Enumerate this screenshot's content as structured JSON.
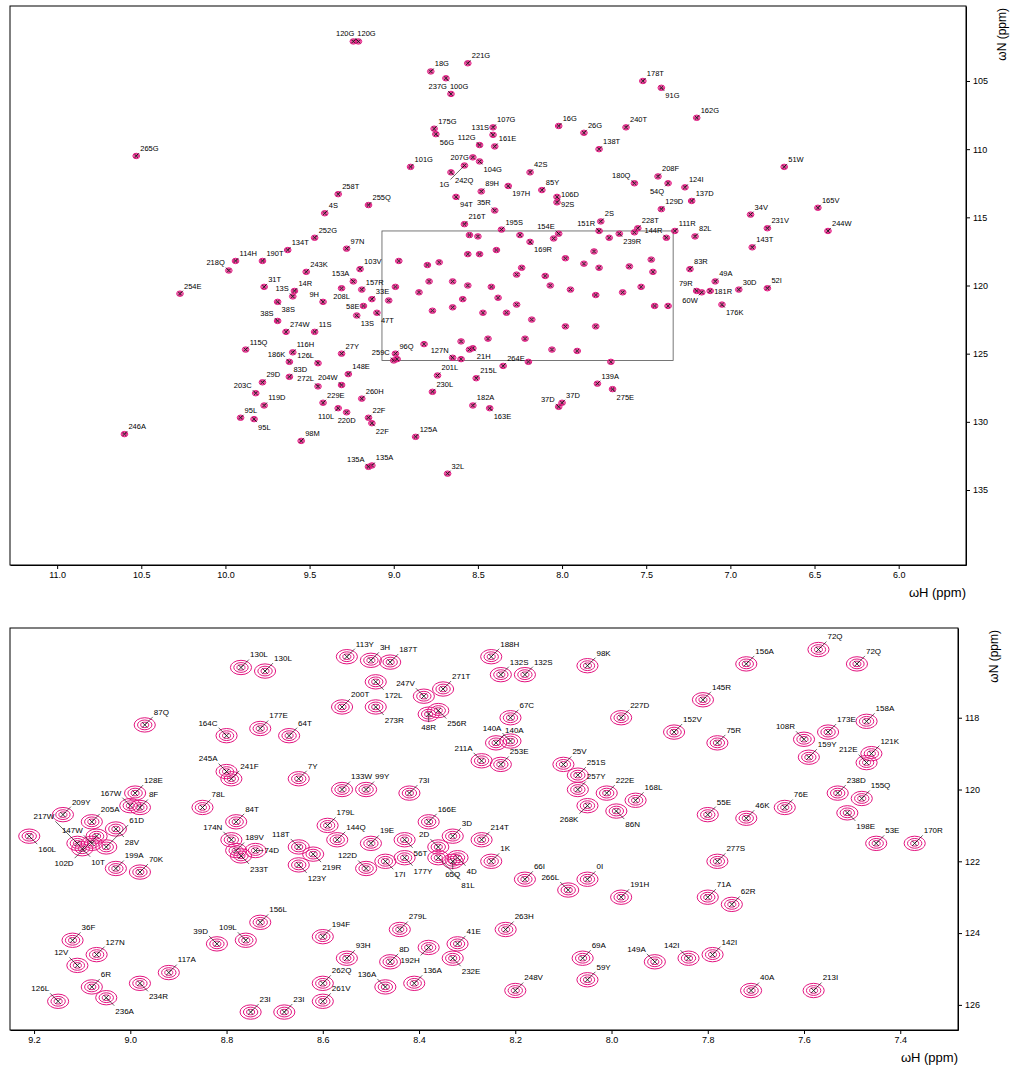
{
  "chart_data": [
    {
      "type": "scatter",
      "x_label": "ωH (ppm)",
      "y_label": "ωN (ppm)",
      "xlim": [
        11.28,
        5.6
      ],
      "ylim": [
        99.5,
        140.5
      ],
      "xticks": [
        {
          "value": 11,
          "label": "11.0"
        },
        10.5,
        {
          "value": 10,
          "label": "10.0"
        },
        9.5,
        {
          "value": 9,
          "label": "9.0"
        },
        8.5,
        {
          "value": 8,
          "label": "8.0"
        },
        7.5,
        {
          "value": 7,
          "label": "7.0"
        },
        6.5,
        {
          "value": 6,
          "label": "6.0"
        }
      ],
      "yticks": [
        105,
        110,
        115,
        120,
        125,
        130,
        135
      ],
      "color": "#e3147f",
      "marker": "x",
      "zoom_region": {
        "x": [
          9.07,
          7.34
        ],
        "y": [
          116.0,
          125.5
        ]
      },
      "series": [
        {
          "labels": [
            "120G",
            "120G",
            "18G",
            "221G",
            "100G",
            "237G",
            "178T",
            "91G",
            "162G",
            "16G",
            "26G",
            "240T",
            "175G",
            "56G",
            "107G",
            "131S",
            "112G",
            "161E",
            "138T",
            "265G",
            "207G",
            "104G",
            "101G",
            "242Q",
            "1G",
            "42S",
            "51W",
            "208F",
            "54Q",
            "180Q",
            "197H",
            "85Y",
            "124I",
            "258T",
            "94T",
            "89H",
            "92S",
            "106D",
            "137D",
            "129D",
            "255Q",
            "4S",
            "34V",
            "165V",
            "35R",
            "2S",
            "216T",
            "244W",
            "231V",
            "151R",
            "195S",
            "228T",
            "239R",
            "154E",
            "169R",
            "144R",
            "111R",
            "82L",
            "143T",
            "252G",
            "134T",
            "97N",
            "190T",
            "114H",
            "218Q",
            "243K",
            "103V",
            "83R",
            "49A",
            "31T",
            "153A",
            "14R",
            "208L",
            "157R",
            "254E",
            "79R",
            "60W",
            "181R",
            "30D",
            "52I",
            "38S",
            "13S",
            "9H",
            "58E",
            "33E",
            "176K",
            "47T",
            "38S",
            "274W",
            "13S",
            "11S",
            "115Q",
            "116H",
            "27Y",
            "96Q",
            "21H",
            "127N",
            "126L",
            "186K",
            "83D",
            "148E",
            "259C",
            "264E",
            "201L",
            "215L",
            "272L",
            "204W",
            "29D",
            "260H",
            "230L",
            "139A",
            "275E",
            "203C",
            "182A",
            "119D",
            "229E",
            "37D",
            "37D",
            "163E",
            "110L",
            "95L",
            "95L",
            "220D",
            "22F",
            "22F",
            "98M",
            "246A",
            "125A",
            "135A",
            "135A",
            "32L"
          ],
          "x": [
            9.24,
            9.21,
            8.78,
            8.56,
            8.69,
            8.66,
            7.52,
            7.41,
            7.2,
            8.02,
            7.87,
            7.62,
            8.76,
            8.75,
            8.41,
            8.41,
            8.49,
            8.4,
            7.78,
            10.53,
            8.53,
            8.49,
            8.9,
            8.66,
            8.58,
            8.19,
            6.68,
            7.43,
            7.37,
            7.57,
            8.32,
            8.12,
            7.27,
            9.33,
            8.63,
            8.48,
            8.03,
            8.03,
            7.23,
            7.41,
            9.15,
            9.41,
            6.88,
            6.48,
            8.4,
            7.77,
            8.58,
            6.42,
            6.78,
            7.78,
            8.36,
            7.55,
            7.66,
            8.02,
            8.19,
            7.38,
            7.33,
            7.21,
            6.87,
            9.47,
            9.63,
            9.28,
            9.78,
            9.94,
            9.98,
            9.52,
            9.2,
            7.24,
            7.09,
            9.77,
            9.24,
            9.59,
            9.31,
            9.19,
            10.27,
            7.2,
            7.17,
            7.12,
            6.95,
            6.78,
            9.69,
            9.6,
            9.42,
            9.18,
            9.13,
            7.05,
            9.1,
            9.69,
            9.64,
            9.22,
            9.47,
            9.88,
            9.6,
            9.31,
            8.99,
            8.53,
            8.65,
            9.45,
            9.62,
            9.62,
            9.27,
            9.0,
            8.35,
            8.74,
            8.51,
            9.45,
            9.31,
            9.78,
            9.19,
            8.77,
            7.79,
            7.7,
            9.82,
            8.53,
            9.77,
            9.42,
            8.0,
            8.02,
            8.43,
            9.33,
            9.91,
            9.83,
            9.28,
            9.15,
            9.13,
            9.55,
            10.6,
            8.87,
            9.13,
            9.15,
            8.68
          ],
          "values": [
            102.1,
            102.1,
            104.3,
            103.7,
            104.8,
            105.95,
            105,
            105.5,
            107.7,
            108.3,
            108.8,
            108.4,
            108.5,
            108.9,
            108.4,
            108.95,
            109.7,
            109.8,
            110,
            110.5,
            110.6,
            110.9,
            111.3,
            111.7,
            111.2,
            111.7,
            111.3,
            112,
            112.5,
            112.5,
            112.7,
            113,
            112.8,
            113.3,
            113.5,
            113.1,
            113.5,
            113.9,
            113.8,
            114.4,
            114.1,
            114.7,
            114.8,
            114.3,
            114.5,
            115.3,
            115.5,
            116,
            115.8,
            116,
            115.9,
            115.8,
            116.2,
            116.2,
            116.8,
            116.5,
            116,
            116.4,
            117.2,
            116.5,
            117.4,
            117.3,
            118.2,
            118.2,
            118.9,
            119,
            118.8,
            118.8,
            119.7,
            120.1,
            119.7,
            120.4,
            120.2,
            120.3,
            120.6,
            120.4,
            120.5,
            120.4,
            120.3,
            120.2,
            121.2,
            120.8,
            121.2,
            121.5,
            121,
            121.4,
            122,
            122.6,
            123.4,
            122.2,
            123.4,
            124.7,
            124.9,
            125,
            125,
            124.6,
            125.3,
            125.7,
            125.6,
            126.7,
            126.5,
            125.5,
            125.9,
            126.6,
            126.8,
            127.4,
            127.3,
            127.1,
            128.3,
            127.8,
            127.2,
            127.6,
            127.9,
            128.8,
            128.8,
            128.6,
            128.6,
            128.9,
            129,
            129,
            129.7,
            129.8,
            129.3,
            129.7,
            130.1,
            131.4,
            130.9,
            131.1,
            133.2,
            133.3,
            133.8
          ]
        },
        {
          "x": [
            8.55,
            8.5,
            8.25,
            8.05,
            7.72,
            7.57,
            8.8,
            8.73,
            8.56,
            8.49,
            8.39,
            8.97,
            7.98,
            7.81,
            7.6,
            7.47,
            8.24,
            7.87,
            8.79,
            8.65,
            8.56,
            8.42,
            8.27,
            8.1,
            7.78,
            7.46,
            8.99,
            8.85,
            9.03,
            8.59,
            8.38,
            8.27,
            8.07,
            7.95,
            7.8,
            7.64,
            7.53,
            7.37,
            7.45,
            8.77,
            8.65,
            8.47,
            8.33,
            8.18,
            7.98,
            7.8,
            8.82,
            8.6,
            8.44,
            8.98,
            8.55,
            8.22,
            7.91,
            7.71,
            8.06,
            8.6,
            8.2
          ],
          "values": [
            116.3,
            116.4,
            116.3,
            116.55,
            116.5,
            116.1,
            118.5,
            118.3,
            117.7,
            117.7,
            117.4,
            118.2,
            118,
            117.5,
            118.6,
            118.1,
            118.7,
            118.4,
            119.7,
            119.7,
            120,
            120.1,
            119.2,
            119.3,
            118.7,
            119,
            120.1,
            120.5,
            121.1,
            121,
            120.9,
            121.4,
            120,
            120.3,
            120.7,
            120.5,
            120.1,
            121.5,
            121.5,
            121.85,
            121.6,
            122,
            122,
            122.5,
            123,
            123,
            124.3,
            124.1,
            123.9,
            125.4,
            124.7,
            123.9,
            124.8,
            125.6,
            124.7,
            125.4,
            125.6
          ]
        }
      ]
    },
    {
      "type": "scatter",
      "x_label": "ωH (ppm)",
      "y_label": "ωN (ppm)",
      "xlim": [
        9.25,
        7.28
      ],
      "ylim": [
        115.5,
        126.7
      ],
      "xticks": [
        9.2,
        {
          "value": 9,
          "label": "9.0"
        },
        8.8,
        8.6,
        8.4,
        8.2,
        {
          "value": 8,
          "label": "8.0"
        },
        7.8,
        7.6,
        7.4
      ],
      "yticks": [
        118,
        120,
        122,
        124,
        126
      ],
      "color": "#e3147f",
      "marker": "x",
      "series": [
        {
          "labels": [
            "130L",
            "130L",
            "113Y",
            "3H",
            "187T",
            "172L",
            "188H",
            "132S",
            "132S",
            "98K",
            "156A",
            "72Q",
            "72Q",
            "164C",
            "177E",
            "64T",
            "200T",
            "273R",
            "247V",
            "271T",
            "256R",
            "48R",
            "87Q",
            "227D",
            "145R",
            "108R",
            "173E",
            "158A",
            "67C",
            "140A",
            "140A",
            "152V",
            "241F",
            "245A",
            "7Y",
            "133W",
            "99Y",
            "73I",
            "211A",
            "253E",
            "25V",
            "251S",
            "75R",
            "159Y",
            "121K",
            "212E",
            "128E",
            "78L",
            "84T",
            "167W",
            "8F",
            "209Y",
            "205A",
            "102D",
            "160L",
            "28V",
            "179L",
            "144Q",
            "19E",
            "166E",
            "3D",
            "214T",
            "257Y",
            "222E",
            "168L",
            "268K",
            "86N",
            "174N",
            "189V",
            "2D",
            "4D",
            "1K",
            "56T",
            "55E",
            "46K",
            "76E",
            "238D",
            "155Q",
            "198E",
            "170R",
            "53E",
            "147W",
            "10T",
            "217W",
            "61D",
            "199A",
            "70K",
            "233T",
            "74D",
            "118T",
            "219R",
            "123Y",
            "122D",
            "17I",
            "177Y",
            "81L",
            "65Q",
            "66I",
            "266L",
            "0I",
            "191H",
            "71A",
            "277S",
            "62R",
            "39D",
            "109L",
            "156L",
            "36F",
            "12V",
            "127N",
            "194F",
            "279L",
            "6R",
            "234R",
            "117A",
            "93H",
            "8D",
            "41E",
            "192H",
            "232E",
            "263H",
            "149A",
            "142I",
            "142I",
            "40A",
            "213I",
            "69A",
            "59Y",
            "126L",
            "236A",
            "262Q",
            "261V",
            "136A",
            "136A",
            "23I",
            "23I",
            "248V"
          ],
          "x": [
            8.77,
            8.72,
            8.55,
            8.5,
            8.46,
            8.49,
            8.25,
            8.23,
            8.18,
            8.05,
            7.72,
            7.57,
            7.49,
            8.8,
            8.73,
            8.67,
            8.56,
            8.49,
            8.39,
            8.35,
            8.36,
            8.38,
            8.97,
            7.98,
            7.81,
            7.6,
            7.55,
            7.47,
            8.21,
            8.24,
            8.21,
            7.87,
            8.79,
            8.8,
            8.65,
            8.56,
            8.51,
            8.42,
            8.27,
            8.23,
            8.1,
            8.07,
            7.78,
            7.59,
            7.46,
            7.47,
            8.99,
            8.85,
            8.78,
            9.0,
            8.98,
            9.14,
            9.08,
            9.07,
            9.21,
            9.03,
            8.59,
            8.57,
            8.5,
            8.38,
            8.33,
            8.27,
            8.07,
            8.01,
            7.95,
            8.05,
            7.99,
            8.79,
            8.78,
            8.36,
            8.32,
            8.25,
            8.43,
            7.8,
            7.72,
            7.64,
            7.53,
            7.48,
            7.51,
            7.37,
            7.45,
            9.08,
            9.1,
            9.11,
            9.05,
            9.03,
            8.98,
            8.77,
            8.74,
            8.65,
            8.62,
            8.65,
            8.51,
            8.47,
            8.43,
            8.36,
            8.33,
            8.18,
            8.09,
            8.05,
            7.98,
            7.8,
            7.78,
            7.75,
            8.82,
            8.76,
            8.73,
            9.12,
            9.11,
            9.07,
            8.6,
            8.44,
            9.08,
            8.98,
            8.92,
            8.55,
            8.46,
            8.32,
            8.38,
            8.33,
            8.22,
            7.91,
            7.84,
            7.79,
            7.71,
            7.58,
            8.06,
            8.05,
            9.15,
            9.05,
            8.6,
            8.6,
            8.47,
            8.41,
            8.75,
            8.68,
            8.2
          ],
          "values": [
            116.6,
            116.7,
            116.3,
            116.4,
            116.45,
            117,
            116.3,
            116.8,
            116.8,
            116.55,
            116.5,
            116.1,
            116.5,
            118.5,
            118.3,
            118.5,
            117.7,
            117.7,
            117.4,
            117.2,
            117.8,
            117.9,
            118.2,
            118,
            117.5,
            118.6,
            118.4,
            118.1,
            118,
            118.7,
            118.65,
            118.4,
            119.7,
            119.5,
            119.7,
            120,
            120,
            120.1,
            119.2,
            119.3,
            119.3,
            119.6,
            118.7,
            119.1,
            119,
            119.25,
            120.1,
            120.5,
            120.9,
            120.45,
            120.5,
            120.7,
            120.9,
            121.3,
            121.3,
            121.1,
            121,
            121.4,
            121.5,
            120.9,
            121.3,
            121.4,
            120,
            120.1,
            120.3,
            120.45,
            120.6,
            121.4,
            121.7,
            121.6,
            121.9,
            122,
            121.4,
            120.7,
            120.8,
            120.5,
            120.1,
            120.25,
            120.65,
            121.5,
            121.5,
            121.5,
            121.65,
            121.5,
            121.6,
            122.2,
            122.3,
            121.85,
            121.7,
            121.6,
            121.8,
            122.1,
            122.2,
            122,
            121.9,
            121.9,
            122,
            122.5,
            122.8,
            122.5,
            123,
            123,
            122,
            123.2,
            124.3,
            124.2,
            123.7,
            124.2,
            124.9,
            124.6,
            124.1,
            123.9,
            125.5,
            125.4,
            125.1,
            124.7,
            124.8,
            124.3,
            124.4,
            124.7,
            123.9,
            124.8,
            124.7,
            124.6,
            125.6,
            125.6,
            124.7,
            125.3,
            125.9,
            125.8,
            125.4,
            125.9,
            125.5,
            125.4,
            126.2,
            126.2,
            125.6
          ]
        }
      ]
    }
  ]
}
